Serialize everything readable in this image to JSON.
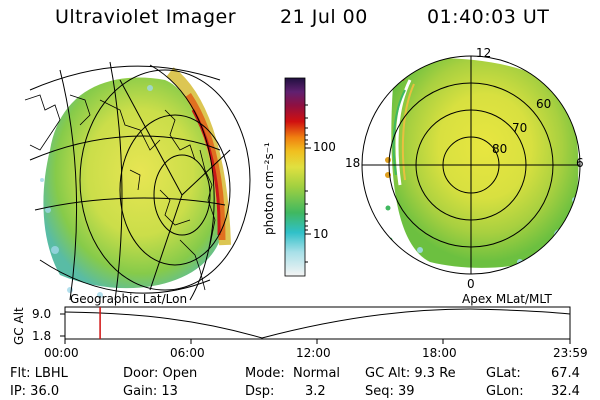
{
  "header": {
    "title": "Ultraviolet Imager",
    "date": "21 Jul 00",
    "time": "01:40:03 UT"
  },
  "colorbar": {
    "unit_label": "photon cm⁻²s⁻¹",
    "ticks": [
      "100",
      "10"
    ]
  },
  "polar_plot": {
    "labels": [
      "12",
      "60",
      "70",
      "80",
      "18",
      "6",
      "0"
    ],
    "title": "Apex MLat/MLT"
  },
  "geo_plot": {
    "title": "Geographic Lat/Lon"
  },
  "altitude_strip": {
    "ylabel": "GC Alt",
    "y_ticks": [
      "9.0",
      "1.8"
    ],
    "x_ticks": [
      "00:00",
      "06:00",
      "12:00",
      "18:00",
      "23:59"
    ],
    "current_time_fraction": 0.0695
  },
  "info": {
    "flt": "Flt: LBHL",
    "ip": "IP: 36.0",
    "door": "Door: Open",
    "gain": "Gain: 13",
    "mode_label": "Mode:",
    "mode_value": "Normal",
    "dsp_label": "Dsp:",
    "dsp_value": "3.2",
    "gcalt": "GC Alt: 9.3 Re",
    "seq": "Seq: 39",
    "glat_label": "GLat:",
    "glat_value": "67.4",
    "glon_label": "GLon:",
    "glon_value": "32.4"
  },
  "colors": {
    "green": "#7ec83a",
    "yellow": "#e6e64a",
    "cyan": "#40c8c8",
    "red": "#d01a1a",
    "orange": "#f0a020"
  }
}
